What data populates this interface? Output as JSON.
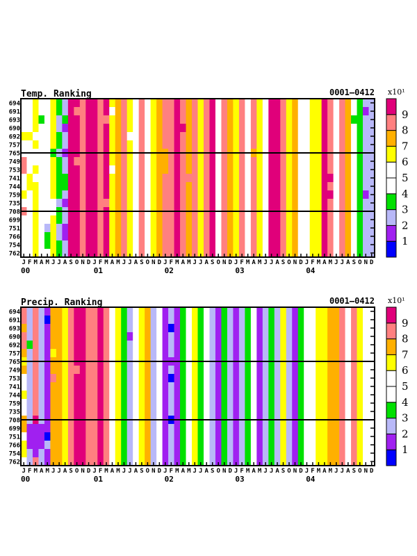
{
  "chart_data": [
    {
      "type": "heatmap",
      "title": "Temp. Ranking",
      "subtitle": "0001—0412",
      "colorbar_unit": "x10¹",
      "colorbar_labels": [
        "1",
        "2",
        "3",
        "4",
        "5",
        "6",
        "7",
        "8",
        "9"
      ],
      "colors": [
        "#0000ff",
        "#a020f0",
        "#b8b8f8",
        "#00e000",
        "#ffffff",
        "#ffffff",
        "#ffff00",
        "#ffb000",
        "#ff8080",
        "#e0007a"
      ],
      "y_labels": [
        "694",
        "691",
        "693",
        "690",
        "692",
        "757",
        "765",
        "749",
        "753",
        "741",
        "744",
        "759",
        "735",
        "708",
        "699",
        "751",
        "766",
        "754",
        "762"
      ],
      "reference_rows": [
        "765",
        "708"
      ],
      "x_month_labels": [
        "J",
        "F",
        "M",
        "A",
        "M",
        "J",
        "J",
        "A",
        "S",
        "O",
        "N",
        "D"
      ],
      "x_year_labels": [
        "00",
        "01",
        "02",
        "03",
        "04"
      ],
      "value_scale": "rank bins 0-9 (x10)",
      "grid": [
        "556456329989989678658567889878689587685865998675566985874322",
        "546456329889989578658567889878689587685865998675566985874312",
        "456356239989988678658467889878689587685865998675466985873322",
        "556456219989989678658567889978689587685865998675566985874322",
        "665456329989989678558567889878689587685865998675566985874322",
        "556456329989989678658567889878689587685865998675566985874322",
        "554453219989989678658567789878689587685765998675566985874322",
        "855456329889989678658567789878689587685865998675566985874322",
        "856456329989989578658567789878689587685865998675566985874322",
        "565456339989989678658567889888689587685865998675566995874322",
        "566456339989989678658567889878689587685865998675566985874322",
        "656446329989989678658567889878689587685865998675566995874312",
        "556455219989988678658567889878689587685865998675566985874322",
        "856455329989989678658567889878689587685865998675566985874322",
        "556456329989989678658567889878689587685865998675566985874322",
        "546426219989989678658567889878689587685865998675566985874322",
        "556436219989989678658567889878689587685865998675566985874322",
        "556436329989989678658567889878689587685865998675566985874322",
        "556456329989989678658567889878689587685865998675566985874322"
      ]
    },
    {
      "type": "heatmap",
      "title": "Precip. Ranking",
      "subtitle": "0001—0412",
      "colorbar_unit": "x10¹",
      "colorbar_labels": [
        "1",
        "2",
        "3",
        "4",
        "5",
        "6",
        "7",
        "8",
        "9"
      ],
      "colors": [
        "#0000ff",
        "#a020f0",
        "#b8b8f8",
        "#00e000",
        "#ffffff",
        "#ffffff",
        "#ffff00",
        "#ffb000",
        "#ff8080",
        "#e0007a"
      ],
      "y_labels": [
        "694",
        "691",
        "693",
        "690",
        "692",
        "757",
        "765",
        "749",
        "753",
        "741",
        "744",
        "759",
        "735",
        "708",
        "699",
        "751",
        "766",
        "754",
        "762"
      ],
      "reference_rows": [
        "765",
        "708"
      ],
      "x_month_labels": [
        "J",
        "F",
        "M",
        "A",
        "M",
        "J",
        "J",
        "A",
        "S",
        "O",
        "N",
        "D"
      ],
      "x_year_labels": [
        "00",
        "01",
        "02",
        "03",
        "04"
      ],
      "value_scale": "rank bins 0-9 (x10)",
      "grid": [
        "828217768998898563256724121346352132123512326213456677858645",
        "828207768998898563256724121346352132123512326213456677858645",
        "728217768998898563256724101346352132123512326213456677858645",
        "828217768998898563156724121346352132123512326213456677858645",
        "838217768998898563256724121346352132123512326213456677858645",
        "728216768998898563256724121346352132123512326213456677858645",
        "628217768998898563256724111346352132123512326213456677858645",
        "728217768898898563256724121346352132123512326213456677858645",
        "528218768998898563256724101346352132123512326213456677858645",
        "528217768998898563256724121346352132123512326213456677858645",
        "628217768998898563256724121346352132123512326213456677858645",
        "528217768998898563256724121346352132123512326213456677858645",
        "428217768998898563256724121346352132123512326213456677858645",
        "729217768998898563256724101346352132123512326213456677858645",
        "711117768998898563256724121346352132123512326213456677858645",
        "511107768998898563256724121346352132123512326213456677858645",
        "611127768998898563256724121346352132123512326213456677858645",
        "621217768998898563256724121346352132123512326213456677858645",
        "528217768998898563256724121346352132123512326213456677858645"
      ]
    }
  ]
}
